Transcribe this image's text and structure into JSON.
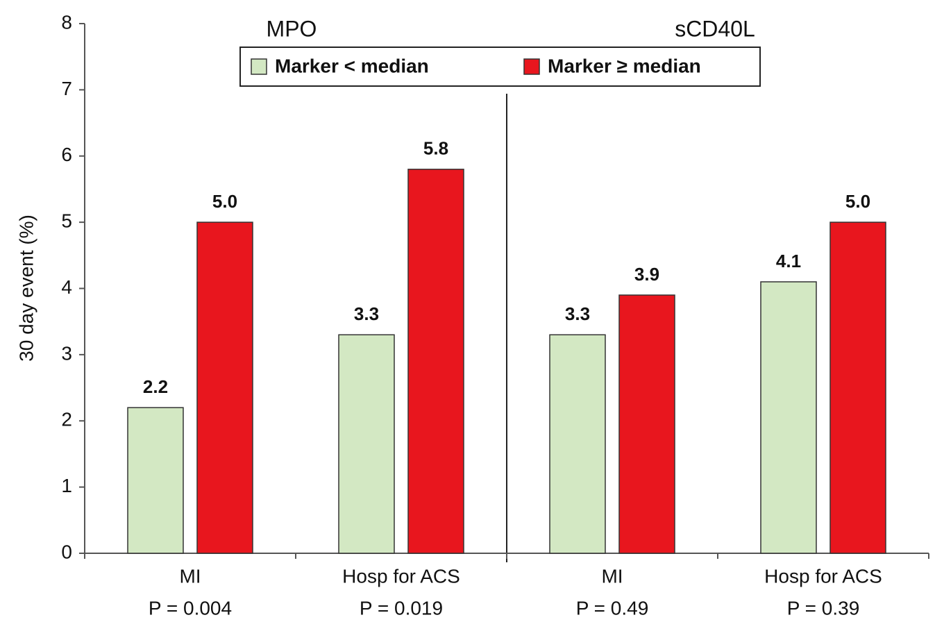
{
  "chart_data": {
    "type": "bar",
    "y_label": "30 day event (%)",
    "group_labels": [
      "MPO",
      "sCD40L"
    ],
    "categories": [
      "MI",
      "Hosp for ACS",
      "MI",
      "Hosp for ACS"
    ],
    "annotations": [
      "P = 0.004",
      "P = 0.019",
      "P = 0.49",
      "P = 0.39"
    ],
    "series": [
      {
        "name": "Marker < median",
        "color": "#d3e8c3",
        "values": [
          2.2,
          3.3,
          3.3,
          4.1
        ],
        "value_labels": [
          "2.2",
          "3.3",
          "3.3",
          "4.1"
        ]
      },
      {
        "name": "Marker ≥ median",
        "color": "#e8161e",
        "values": [
          5.0,
          5.8,
          3.9,
          5.0
        ],
        "value_labels": [
          "5.0",
          "5.8",
          "3.9",
          "5.0"
        ]
      }
    ],
    "ylim": [
      0,
      8
    ],
    "yticks": [
      0,
      1,
      2,
      3,
      4,
      5,
      6,
      7,
      8
    ],
    "grid": false,
    "legend": "top"
  }
}
